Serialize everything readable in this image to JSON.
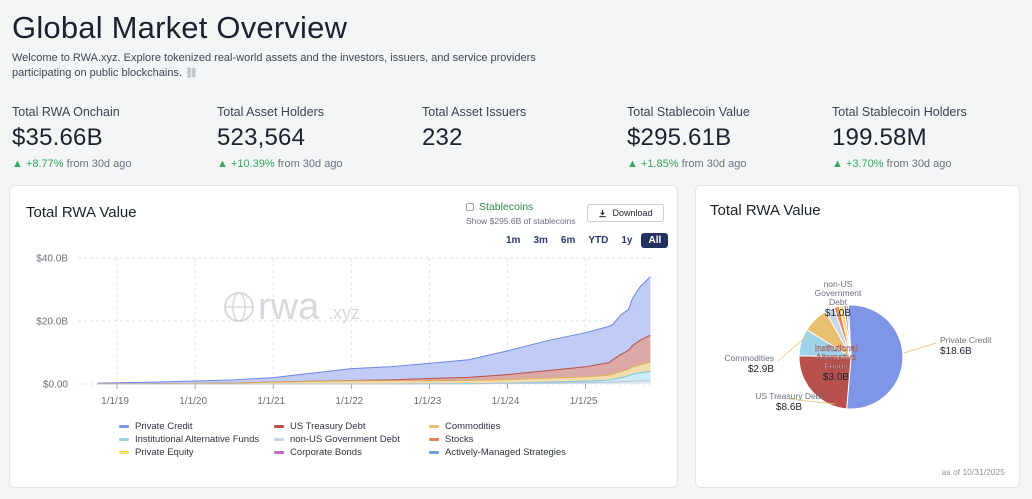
{
  "header": {
    "title": "Global Market Overview",
    "subtitle": "Welcome to RWA.xyz. Explore tokenized real-world assets and the investors, issuers, and service providers participating on public blockchains.",
    "link_icon": "⛓"
  },
  "stats": [
    {
      "label": "Total RWA Onchain",
      "value": "$35.66B",
      "change": "+8.77%",
      "suffix": "from 30d ago"
    },
    {
      "label": "Total Asset Holders",
      "value": "523,564",
      "change": "+10.39%",
      "suffix": "from 30d ago"
    },
    {
      "label": "Total Asset Issuers",
      "value": "232",
      "change": "",
      "suffix": ""
    },
    {
      "label": "Total Stablecoin Value",
      "value": "$295.61B",
      "change": "+1.85%",
      "suffix": "from 30d ago"
    },
    {
      "label": "Total Stablecoin Holders",
      "value": "199.58M",
      "change": "+3.70%",
      "suffix": "from 30d ago"
    }
  ],
  "area_chart": {
    "title": "Total RWA Value",
    "stablecoin_label": "Stablecoins",
    "stablecoin_sub": "Show $295.6B of stablecoins",
    "download_label": "Download",
    "ranges": [
      "1m",
      "3m",
      "6m",
      "YTD",
      "1y",
      "All"
    ],
    "active_range": "All",
    "watermark": "rwa",
    "watermark_suffix": ".xyz"
  },
  "legend": [
    {
      "label": "Private Credit",
      "color": "#7f96e8"
    },
    {
      "label": "US Treasury Debt",
      "color": "#b8504d"
    },
    {
      "label": "Commodities",
      "color": "#e8c070"
    },
    {
      "label": "Institutional Alternative Funds",
      "color": "#9fd3ea"
    },
    {
      "label": "non-US Government Debt",
      "color": "#c9d6e8"
    },
    {
      "label": "Stocks",
      "color": "#e8825a"
    },
    {
      "label": "Private Equity",
      "color": "#f2df6a"
    },
    {
      "label": "Corporate Bonds",
      "color": "#c26bc0"
    },
    {
      "label": "Actively-Managed Strategies",
      "color": "#6fa0d8"
    }
  ],
  "pie_card": {
    "title": "Total RWA Value",
    "as_of": "as of 10/31/2025"
  },
  "chart_data": [
    {
      "type": "area",
      "title": "Total RWA Value",
      "x_ticks": [
        "1/1/19",
        "1/1/20",
        "1/1/21",
        "1/1/22",
        "1/1/23",
        "1/1/24",
        "1/1/25"
      ],
      "y_ticks": [
        "$0.00",
        "$20.0B",
        "$40.0B"
      ],
      "ylim": [
        0,
        40
      ],
      "yunit": "$B",
      "x": [
        2018.75,
        2019.5,
        2020.5,
        2021.0,
        2021.5,
        2022.0,
        2022.5,
        2023.0,
        2023.5,
        2024.0,
        2024.5,
        2025.0,
        2025.3,
        2025.35,
        2025.45,
        2025.55,
        2025.6,
        2025.7,
        2025.83
      ],
      "series": [
        {
          "name": "Private Credit",
          "values": [
            0.2,
            0.5,
            1.0,
            1.4,
            2.6,
            3.8,
            4.2,
            4.8,
            5.6,
            7.5,
            9.5,
            10.8,
            11.5,
            11.3,
            12.5,
            13.0,
            15.0,
            17.0,
            18.6
          ]
        },
        {
          "name": "US Treasury Debt",
          "values": [
            0,
            0,
            0,
            0.02,
            0.05,
            0.1,
            0.3,
            0.7,
            1.0,
            1.6,
            2.4,
            3.2,
            4.0,
            4.5,
            5.5,
            6.0,
            6.8,
            7.8,
            8.6
          ]
        },
        {
          "name": "Commodities",
          "values": [
            0.1,
            0.1,
            0.3,
            0.6,
            0.8,
            1.0,
            1.0,
            1.0,
            1.0,
            1.1,
            1.2,
            1.4,
            1.6,
            1.7,
            1.9,
            2.1,
            2.3,
            2.6,
            2.9
          ]
        },
        {
          "name": "Institutional Alternative Funds",
          "values": [
            0,
            0,
            0,
            0,
            0,
            0,
            0,
            0,
            0,
            0.1,
            0.3,
            0.5,
            0.7,
            0.9,
            1.3,
            1.8,
            2.2,
            2.6,
            3.0
          ]
        },
        {
          "name": "non-US Government Debt",
          "values": [
            0,
            0,
            0,
            0,
            0,
            0,
            0,
            0.05,
            0.1,
            0.2,
            0.3,
            0.4,
            0.5,
            0.6,
            0.7,
            0.8,
            0.9,
            0.95,
            1.0
          ]
        }
      ]
    },
    {
      "type": "pie",
      "title": "Total RWA Value",
      "slices": [
        {
          "label": "Private Credit",
          "value": 18.6,
          "value_label": "$18.6B",
          "color": "#7f96e8"
        },
        {
          "label": "US Treasury Debt",
          "value": 8.6,
          "value_label": "$8.6B",
          "color": "#b8504d"
        },
        {
          "label": "Institutional Alternative Funds",
          "value": 3.0,
          "value_label": "$3.0B",
          "color": "#9fd3ea"
        },
        {
          "label": "Commodities",
          "value": 2.9,
          "value_label": "$2.9B",
          "color": "#e8c070"
        },
        {
          "label": "non-US Government Debt",
          "value": 1.0,
          "value_label": "$1.0B",
          "color": "#c9d6e8"
        },
        {
          "label": "Stocks",
          "value": 0.6,
          "value_label": "",
          "color": "#e8825a"
        },
        {
          "label": "Private Equity",
          "value": 0.5,
          "value_label": "",
          "color": "#f2df6a"
        },
        {
          "label": "Corporate Bonds",
          "value": 0.3,
          "value_label": "",
          "color": "#c26bc0"
        },
        {
          "label": "Actively-Managed Strategies",
          "value": 0.2,
          "value_label": "",
          "color": "#6fa0d8"
        }
      ],
      "labeled": [
        {
          "lines": [
            "Private Credit"
          ],
          "value": "$18.6B"
        },
        {
          "lines": [
            "US Treasury Debt"
          ],
          "value": "$8.6B"
        },
        {
          "lines": [
            "Institutional",
            "Alternative",
            "Funds"
          ],
          "value": "$3.0B"
        },
        {
          "lines": [
            "Commodities"
          ],
          "value": "$2.9B"
        },
        {
          "lines": [
            "non-US",
            "Government",
            "Debt"
          ],
          "value": "$1.0B"
        }
      ]
    }
  ]
}
